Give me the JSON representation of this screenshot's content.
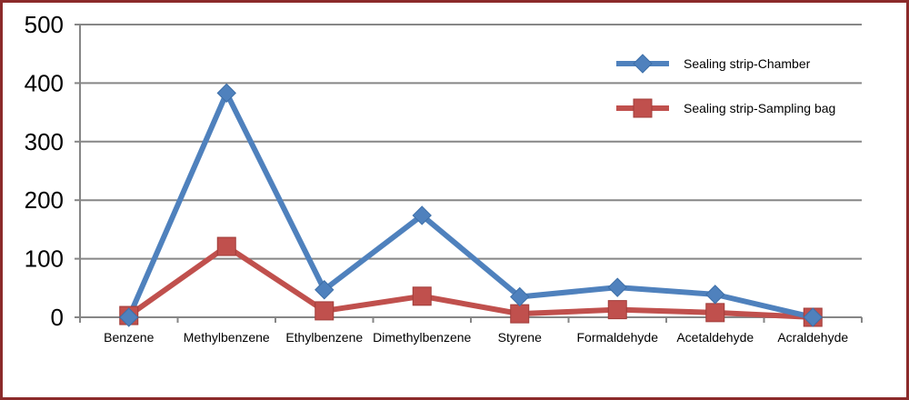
{
  "chart_data": {
    "type": "line",
    "title": "",
    "xlabel": "",
    "ylabel": "",
    "categories": [
      "Benzene",
      "Methylbenzene",
      "Ethylbenzene",
      "Dimethylbenzene",
      "Styrene",
      "Formaldehyde",
      "Acetaldehyde",
      "Acraldehyde"
    ],
    "ylim": [
      0,
      500
    ],
    "yticks": [
      "0",
      "100",
      "200",
      "300",
      "400",
      "500"
    ],
    "grid": true,
    "legend_position": "top-right",
    "series": [
      {
        "name": "Sealing strip-Chamber",
        "color": "#4f81bd",
        "marker": "diamond",
        "values": [
          0,
          383,
          47,
          174,
          35,
          51,
          39,
          0
        ]
      },
      {
        "name": "Sealing strip-Sampling bag",
        "color": "#c0504d",
        "marker": "square",
        "values": [
          3,
          121,
          11,
          36,
          6,
          13,
          8,
          0
        ]
      }
    ]
  }
}
